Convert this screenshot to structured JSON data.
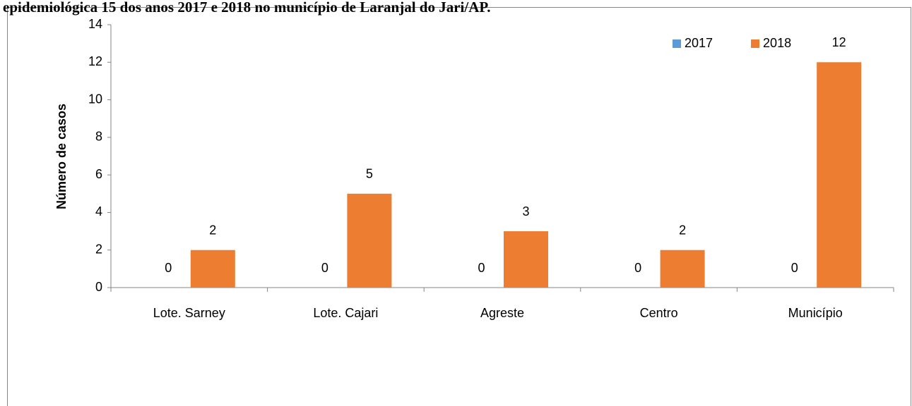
{
  "chart_data": {
    "type": "bar",
    "title": "epidemiológica 15 dos anos 2017 e 2018 no município de Laranjal do Jari/AP.",
    "ylabel": "Número de casos",
    "categories": [
      "Lote. Sarney",
      "Lote. Cajari",
      "Agreste",
      "Centro",
      "Município"
    ],
    "series": [
      {
        "name": "2017",
        "color": "#5b9bd5",
        "values": [
          0,
          0,
          0,
          0,
          0
        ]
      },
      {
        "name": "2018",
        "color": "#ed7d31",
        "values": [
          2,
          5,
          3,
          2,
          12
        ]
      }
    ],
    "ylim": [
      0,
      14
    ],
    "yticks": [
      0,
      2,
      4,
      6,
      8,
      10,
      12,
      14
    ],
    "legend": "top-right",
    "grid": false
  }
}
